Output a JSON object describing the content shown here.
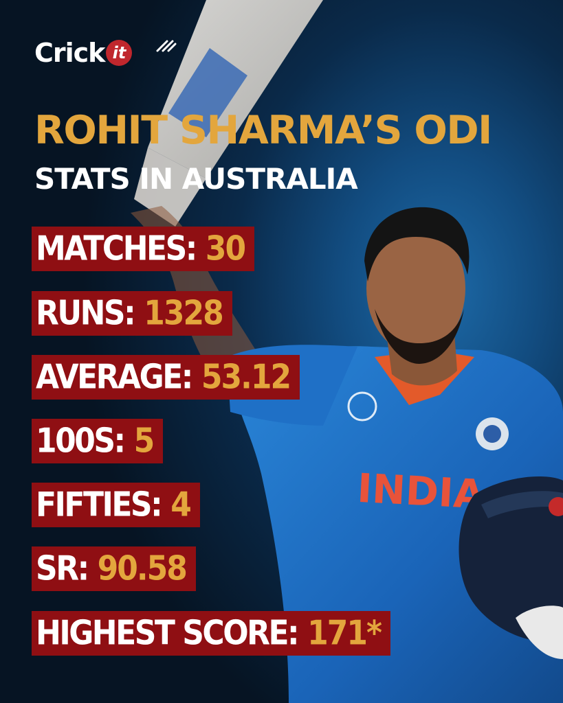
{
  "brand": {
    "logo_text": "Crick",
    "logo_badge": "it"
  },
  "title": {
    "line1": "ROHIT SHARMA’S ODI",
    "line2": "STATS IN AUSTRALIA"
  },
  "stats": [
    {
      "label": "MATCHES:",
      "value": "30"
    },
    {
      "label": "RUNS:",
      "value": "1328"
    },
    {
      "label": "AVERAGE:",
      "value": "53.12"
    },
    {
      "label": "100S:",
      "value": "5"
    },
    {
      "label": "FIFTIES:",
      "value": "4"
    },
    {
      "label": "SR:",
      "value": "90.58"
    },
    {
      "label": "HIGHEST SCORE:",
      "value": "171*"
    }
  ],
  "jersey": {
    "text": "INDIA"
  },
  "colors": {
    "accent_gold": "#e3a63d",
    "box_red": "#8f0f13",
    "brand_red": "#c0272d",
    "jersey_blue": "#1d6fc4"
  }
}
